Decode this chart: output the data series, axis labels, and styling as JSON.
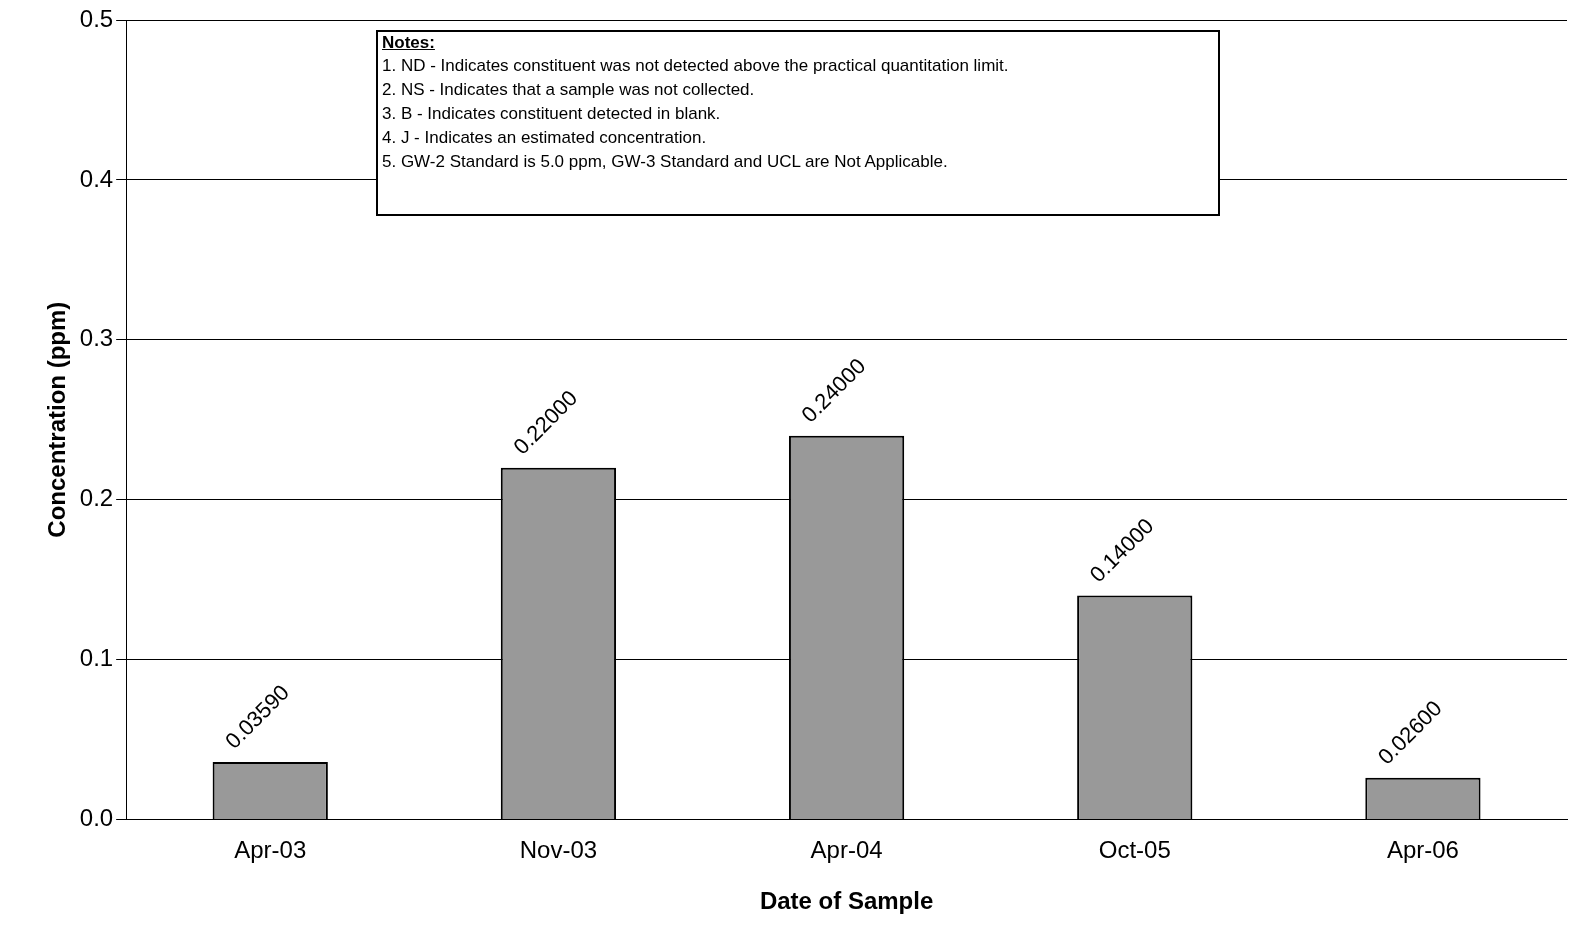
{
  "chart_data": {
    "type": "bar",
    "xlabel": "Date of Sample",
    "ylabel": "Concentration (ppm)",
    "categories": [
      "Apr-03",
      "Nov-03",
      "Apr-04",
      "Oct-05",
      "Apr-06"
    ],
    "values": [
      0.0359,
      0.22,
      0.24,
      0.14,
      0.026
    ],
    "value_labels": [
      "0.03590",
      "0.22000",
      "0.24000",
      "0.14000",
      "0.02600"
    ],
    "color": "#999999",
    "ylim": [
      0,
      0.5
    ],
    "yticks": [
      {
        "value": 0,
        "label": "0.0"
      },
      {
        "value": 0.1,
        "label": "0.1"
      },
      {
        "value": 0.2,
        "label": "0.2"
      },
      {
        "value": 0.3,
        "label": "0.3"
      },
      {
        "value": 0.4,
        "label": "0.4"
      },
      {
        "value": 0.5,
        "label": "0.5"
      }
    ],
    "grid": "y",
    "legend": false,
    "annotations": [
      "Notes:",
      "1. ND - Indicates constituent was not detected above the practical quantitation limit.",
      "2. NS - Indicates that a sample was not collected.",
      "3. B - Indicates constituent detected in blank.",
      "4. J - Indicates an estimated concentration.",
      "5. GW-2 Standard is 5.0 ppm, GW-3 Standard and UCL are Not Applicable."
    ]
  }
}
